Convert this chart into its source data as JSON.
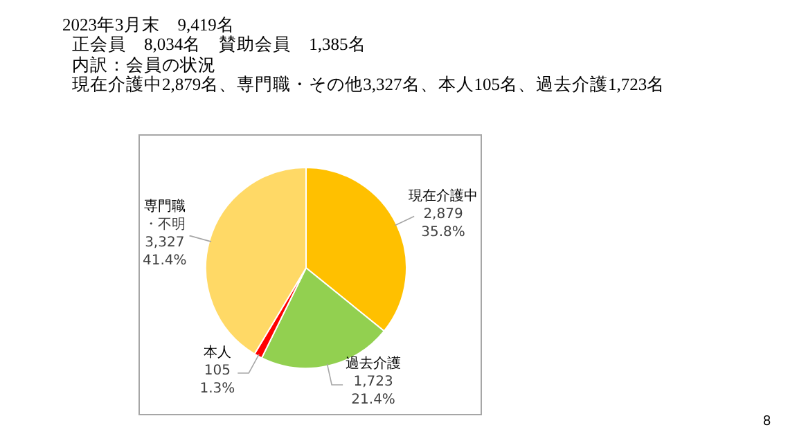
{
  "chart_data": {
    "type": "pie",
    "title": "2023年3月末　9,419名",
    "annotations": [
      "正会員　8,034名　賛助会員　1,385名",
      "内訳：会員の状況",
      "現在介護中2,879名、専門職・その他3,327名、本人105名、過去介護1,723名",
      "8"
    ],
    "categories": [
      "現在介護中",
      "過去介護",
      "本人",
      "専門職・不明"
    ],
    "values": [
      2879,
      1723,
      105,
      3327
    ],
    "value_labels": [
      "2,879\n35.8%",
      "1,723\n21.4%",
      "105\n1.3%",
      "3,327\n41.4%"
    ],
    "colors": [
      "#ffc000",
      "#92d050",
      "#ff0000",
      "#ffd966"
    ],
    "legend": false
  }
}
